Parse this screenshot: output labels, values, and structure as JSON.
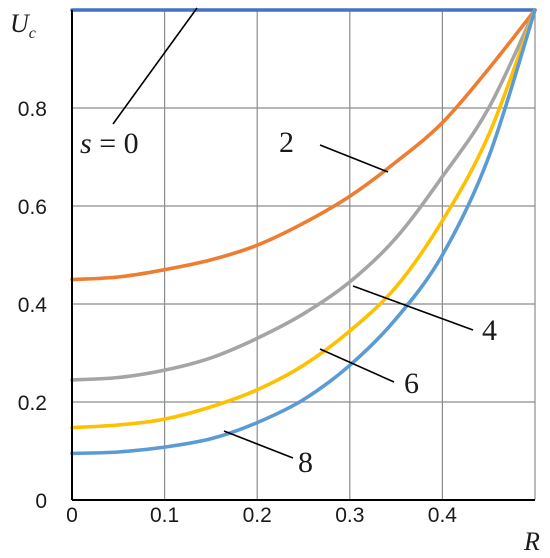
{
  "chart_data": {
    "type": "line",
    "title": "",
    "xlabel": "R",
    "ylabel": "U",
    "ylabel_sub": "c",
    "xlim": [
      0,
      0.5
    ],
    "ylim": [
      0,
      1
    ],
    "x_ticks": [
      "0",
      "0.1",
      "0.2",
      "0.3",
      "0.4"
    ],
    "y_ticks": [
      "0",
      "0.2",
      "0.4",
      "0.6",
      "0.8"
    ],
    "grid": true,
    "x": [
      0,
      0.05,
      0.1,
      0.15,
      0.2,
      0.25,
      0.3,
      0.35,
      0.4,
      0.45,
      0.5
    ],
    "series": [
      {
        "name": "s = 0",
        "label_var": "s",
        "label_eq": " = 0",
        "color": "#4472c4",
        "values": [
          1,
          1,
          1,
          1,
          1,
          1,
          1,
          1,
          1,
          1,
          1
        ]
      },
      {
        "name": "2",
        "color": "#ed7d31",
        "values": [
          0.45,
          0.455,
          0.47,
          0.49,
          0.52,
          0.565,
          0.62,
          0.69,
          0.77,
          0.88,
          1.0
        ]
      },
      {
        "name": "4",
        "color": "#a5a5a5",
        "values": [
          0.245,
          0.25,
          0.265,
          0.29,
          0.33,
          0.38,
          0.445,
          0.535,
          0.66,
          0.8,
          1.0
        ]
      },
      {
        "name": "6",
        "color": "#ffc000",
        "values": [
          0.148,
          0.153,
          0.165,
          0.19,
          0.225,
          0.275,
          0.345,
          0.435,
          0.57,
          0.745,
          1.0
        ]
      },
      {
        "name": "8",
        "color": "#5b9bd5",
        "values": [
          0.095,
          0.098,
          0.108,
          0.125,
          0.158,
          0.205,
          0.275,
          0.37,
          0.5,
          0.7,
          1.0
        ]
      }
    ]
  }
}
